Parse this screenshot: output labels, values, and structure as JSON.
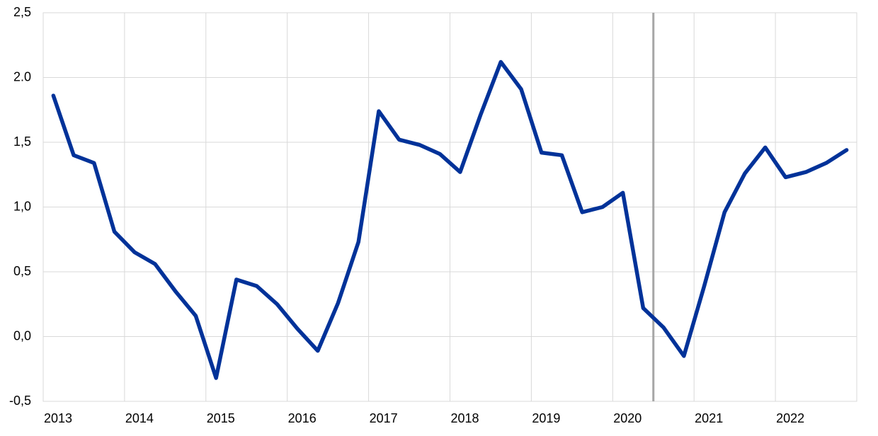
{
  "chart_data": {
    "type": "line",
    "x": [
      2013.125,
      2013.375,
      2013.625,
      2013.875,
      2014.125,
      2014.375,
      2014.625,
      2014.875,
      2015.125,
      2015.375,
      2015.625,
      2015.875,
      2016.125,
      2016.375,
      2016.625,
      2016.875,
      2017.125,
      2017.375,
      2017.625,
      2017.875,
      2018.125,
      2018.375,
      2018.625,
      2018.875,
      2019.125,
      2019.375,
      2019.625,
      2019.875,
      2020.125,
      2020.375,
      2020.625,
      2020.875,
      2021.125,
      2021.375,
      2021.625,
      2021.875,
      2022.125,
      2022.375,
      2022.625,
      2022.875
    ],
    "series": [
      {
        "color": "#003299",
        "values": [
          1.86,
          1.4,
          1.34,
          0.81,
          0.65,
          0.56,
          0.35,
          0.16,
          -0.32,
          0.44,
          0.39,
          0.25,
          0.06,
          -0.11,
          0.26,
          0.73,
          1.74,
          1.52,
          1.48,
          1.41,
          1.27,
          1.71,
          2.12,
          1.91,
          1.42,
          1.4,
          0.96,
          1.0,
          1.11,
          0.22,
          0.07,
          -0.15,
          0.39,
          0.96,
          1.26,
          1.46,
          1.23,
          1.27,
          1.34,
          1.44
        ]
      }
    ],
    "xlim": [
      2013,
      2023
    ],
    "xticks": [
      2013,
      2014,
      2015,
      2016,
      2017,
      2018,
      2019,
      2020,
      2021,
      2022
    ],
    "ylim": [
      -0.5,
      2.5
    ],
    "yticks": [
      {
        "value": -0.5,
        "label": "-0,5"
      },
      {
        "value": 0,
        "label": "0,0"
      },
      {
        "value": 0.5,
        "label": "0,5"
      },
      {
        "value": 1,
        "label": "1,0"
      },
      {
        "value": 1.5,
        "label": "1,5"
      },
      {
        "value": 2,
        "label": "2.0"
      },
      {
        "value": 2.5,
        "label": "2,5"
      }
    ],
    "vline": {
      "x": 2020.5,
      "color": "#a6a6a6"
    },
    "grid": true
  }
}
